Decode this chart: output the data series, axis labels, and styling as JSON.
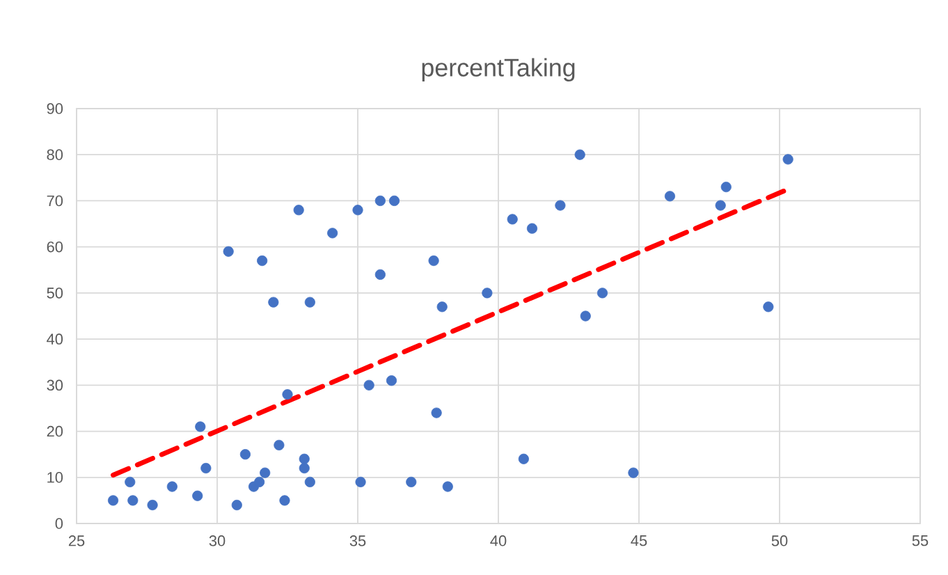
{
  "chart_data": {
    "type": "scatter",
    "title": "percentTaking",
    "xlim": [
      25,
      55
    ],
    "xticks": [
      25,
      30,
      35,
      40,
      45,
      50,
      55
    ],
    "ylim": [
      0,
      90
    ],
    "yticks": [
      0,
      10,
      20,
      30,
      40,
      50,
      60,
      70,
      80,
      90
    ],
    "grid": true,
    "series": [
      {
        "color": "#4472c4",
        "marker": "circle",
        "x": [
          26.3,
          26.9,
          27.0,
          27.7,
          28.4,
          29.3,
          29.4,
          29.6,
          30.4,
          30.7,
          31.0,
          31.3,
          31.5,
          31.7,
          31.6,
          32.0,
          32.2,
          32.4,
          32.5,
          32.9,
          33.1,
          33.1,
          33.3,
          33.3,
          34.1,
          35.0,
          35.1,
          35.4,
          35.8,
          35.8,
          36.3,
          36.2,
          36.9,
          37.7,
          37.8,
          38.0,
          38.2,
          39.6,
          40.5,
          40.9,
          41.2,
          42.2,
          42.9,
          43.1,
          43.7,
          44.8,
          46.1,
          47.9,
          48.1,
          49.6,
          50.3
        ],
        "values": [
          5,
          9,
          5,
          4,
          8,
          6,
          21,
          12,
          59,
          4,
          15,
          8,
          9,
          11,
          57,
          48,
          17,
          5,
          28,
          68,
          14,
          12,
          48,
          9,
          63,
          68,
          9,
          30,
          70,
          54,
          70,
          31,
          9,
          57,
          24,
          47,
          8,
          50,
          66,
          14,
          64,
          69,
          80,
          45,
          50,
          11,
          71,
          69,
          73,
          47,
          79
        ]
      },
      {
        "type": "line",
        "color": "#ff0000",
        "line_style": "dashed",
        "marker": "none",
        "x": [
          26.3,
          50.3
        ],
        "values": [
          10.5,
          72.5
        ]
      }
    ]
  }
}
